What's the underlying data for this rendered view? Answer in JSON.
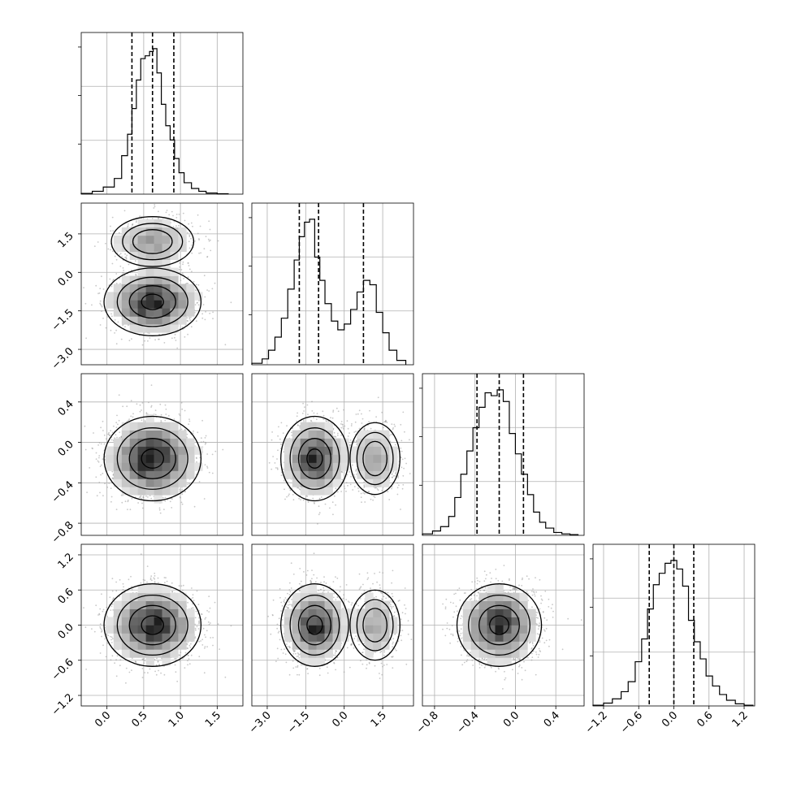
{
  "chart_data": {
    "type": "corner",
    "parameters": 4,
    "ranges": [
      [
        -0.35,
        1.85
      ],
      [
        -3.6,
        2.7
      ],
      [
        -0.92,
        0.68
      ],
      [
        -1.38,
        1.38
      ]
    ],
    "ticks": [
      {
        "values": [
          0.0,
          0.5,
          1.0,
          1.5
        ],
        "labels": [
          "0.0",
          "0.5",
          "1.0",
          "1.5"
        ]
      },
      {
        "values": [
          -3.0,
          -1.5,
          0.0,
          1.5
        ],
        "labels": [
          "−3.0",
          "−1.5",
          "0.0",
          "1.5"
        ]
      },
      {
        "values": [
          -0.8,
          -0.4,
          0.0,
          0.4
        ],
        "labels": [
          "−0.8",
          "−0.4",
          "0.0",
          "0.4"
        ]
      },
      {
        "values": [
          -1.2,
          -0.6,
          0.0,
          0.6,
          1.2
        ],
        "labels": [
          "−1.2",
          "−0.6",
          "0.0",
          "0.6",
          "1.2"
        ]
      }
    ],
    "grid": true,
    "histogram_color": "#000000",
    "density_color": "#000000",
    "scatter_color": "#9a9a9a",
    "histograms": [
      {
        "bin_edges": [
          -0.35,
          -0.2,
          -0.05,
          0.1,
          0.2,
          0.28,
          0.34,
          0.4,
          0.46,
          0.52,
          0.58,
          0.63,
          0.68,
          0.74,
          0.8,
          0.86,
          0.92,
          0.98,
          1.05,
          1.15,
          1.25,
          1.35,
          1.5,
          1.65
        ],
        "counts": [
          0.005,
          0.02,
          0.05,
          0.11,
          0.27,
          0.42,
          0.6,
          0.8,
          0.95,
          0.97,
          1.0,
          1.02,
          0.85,
          0.63,
          0.48,
          0.38,
          0.25,
          0.15,
          0.08,
          0.04,
          0.02,
          0.008,
          0.003
        ],
        "quantiles": [
          0.34,
          0.62,
          0.91
        ]
      },
      {
        "bin_edges": [
          -3.6,
          -3.2,
          -2.95,
          -2.7,
          -2.45,
          -2.2,
          -1.95,
          -1.75,
          -1.55,
          -1.35,
          -1.15,
          -0.95,
          -0.75,
          -0.5,
          -0.25,
          0.0,
          0.25,
          0.5,
          0.75,
          1.0,
          1.25,
          1.5,
          1.75,
          2.05,
          2.4
        ],
        "counts": [
          0.01,
          0.04,
          0.1,
          0.19,
          0.32,
          0.52,
          0.72,
          0.88,
          0.98,
          1.0,
          0.74,
          0.58,
          0.42,
          0.3,
          0.24,
          0.28,
          0.38,
          0.5,
          0.58,
          0.55,
          0.36,
          0.22,
          0.1,
          0.03
        ],
        "quantiles": [
          -1.75,
          -1.0,
          0.75
        ]
      },
      {
        "bin_edges": [
          -0.92,
          -0.82,
          -0.74,
          -0.66,
          -0.6,
          -0.54,
          -0.48,
          -0.42,
          -0.36,
          -0.3,
          -0.24,
          -0.18,
          -0.12,
          -0.06,
          0.0,
          0.06,
          0.12,
          0.18,
          0.24,
          0.3,
          0.38,
          0.46,
          0.54,
          0.62
        ],
        "counts": [
          0.01,
          0.03,
          0.06,
          0.13,
          0.26,
          0.42,
          0.58,
          0.74,
          0.88,
          0.98,
          0.96,
          1.0,
          0.92,
          0.7,
          0.56,
          0.42,
          0.28,
          0.16,
          0.09,
          0.05,
          0.02,
          0.01,
          0.005
        ],
        "quantiles": [
          -0.38,
          -0.16,
          0.08
        ]
      },
      {
        "bin_edges": [
          -1.38,
          -1.2,
          -1.05,
          -0.9,
          -0.78,
          -0.66,
          -0.55,
          -0.45,
          -0.35,
          -0.25,
          -0.15,
          -0.05,
          0.05,
          0.15,
          0.25,
          0.35,
          0.45,
          0.55,
          0.66,
          0.78,
          0.9,
          1.05,
          1.2,
          1.35
        ],
        "counts": [
          0.005,
          0.02,
          0.05,
          0.1,
          0.17,
          0.31,
          0.47,
          0.68,
          0.85,
          0.93,
          1.0,
          1.02,
          0.96,
          0.84,
          0.6,
          0.45,
          0.33,
          0.21,
          0.14,
          0.08,
          0.04,
          0.015,
          0.005
        ],
        "quantiles": [
          -0.42,
          0.0,
          0.34
        ]
      }
    ],
    "distributions": [
      {
        "param": 0,
        "components": [
          {
            "weight": 1.0,
            "mean": 0.62,
            "sd": 0.3
          }
        ]
      },
      {
        "param": 1,
        "components": [
          {
            "weight": 0.72,
            "mean": -1.15,
            "sd": 0.6
          },
          {
            "weight": 0.28,
            "mean": 1.2,
            "sd": 0.52
          }
        ]
      },
      {
        "param": 2,
        "components": [
          {
            "weight": 1.0,
            "mean": -0.16,
            "sd": 0.19
          }
        ]
      },
      {
        "param": 3,
        "components": [
          {
            "weight": 1.0,
            "mean": 0.0,
            "sd": 0.32
          }
        ]
      }
    ]
  }
}
